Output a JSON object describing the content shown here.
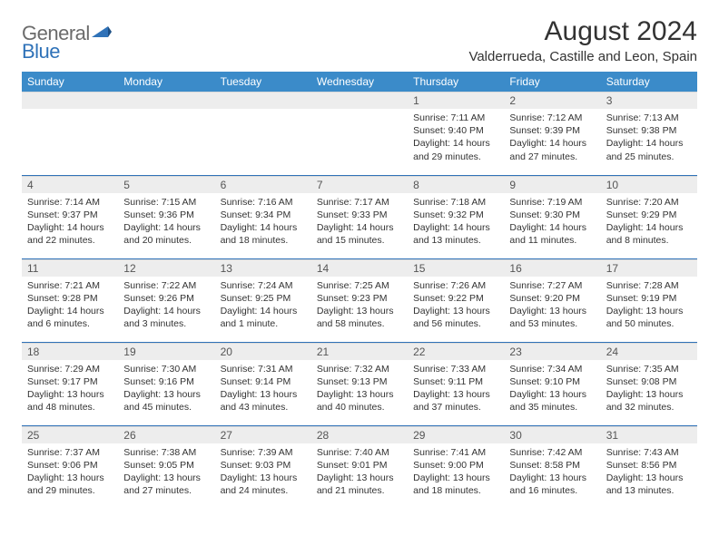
{
  "logo": {
    "general": "General",
    "blue": "Blue"
  },
  "title": "August 2024",
  "location": "Valderrueda, Castille and Leon, Spain",
  "colors": {
    "header_bg": "#3b8bc9",
    "border": "#2f72b8",
    "daynum_bg": "#ededed",
    "text": "#333333"
  },
  "day_names": [
    "Sunday",
    "Monday",
    "Tuesday",
    "Wednesday",
    "Thursday",
    "Friday",
    "Saturday"
  ],
  "weeks": [
    [
      {
        "n": "",
        "sr": "",
        "ss": "",
        "dl": ""
      },
      {
        "n": "",
        "sr": "",
        "ss": "",
        "dl": ""
      },
      {
        "n": "",
        "sr": "",
        "ss": "",
        "dl": ""
      },
      {
        "n": "",
        "sr": "",
        "ss": "",
        "dl": ""
      },
      {
        "n": "1",
        "sr": "Sunrise: 7:11 AM",
        "ss": "Sunset: 9:40 PM",
        "dl": "Daylight: 14 hours and 29 minutes."
      },
      {
        "n": "2",
        "sr": "Sunrise: 7:12 AM",
        "ss": "Sunset: 9:39 PM",
        "dl": "Daylight: 14 hours and 27 minutes."
      },
      {
        "n": "3",
        "sr": "Sunrise: 7:13 AM",
        "ss": "Sunset: 9:38 PM",
        "dl": "Daylight: 14 hours and 25 minutes."
      }
    ],
    [
      {
        "n": "4",
        "sr": "Sunrise: 7:14 AM",
        "ss": "Sunset: 9:37 PM",
        "dl": "Daylight: 14 hours and 22 minutes."
      },
      {
        "n": "5",
        "sr": "Sunrise: 7:15 AM",
        "ss": "Sunset: 9:36 PM",
        "dl": "Daylight: 14 hours and 20 minutes."
      },
      {
        "n": "6",
        "sr": "Sunrise: 7:16 AM",
        "ss": "Sunset: 9:34 PM",
        "dl": "Daylight: 14 hours and 18 minutes."
      },
      {
        "n": "7",
        "sr": "Sunrise: 7:17 AM",
        "ss": "Sunset: 9:33 PM",
        "dl": "Daylight: 14 hours and 15 minutes."
      },
      {
        "n": "8",
        "sr": "Sunrise: 7:18 AM",
        "ss": "Sunset: 9:32 PM",
        "dl": "Daylight: 14 hours and 13 minutes."
      },
      {
        "n": "9",
        "sr": "Sunrise: 7:19 AM",
        "ss": "Sunset: 9:30 PM",
        "dl": "Daylight: 14 hours and 11 minutes."
      },
      {
        "n": "10",
        "sr": "Sunrise: 7:20 AM",
        "ss": "Sunset: 9:29 PM",
        "dl": "Daylight: 14 hours and 8 minutes."
      }
    ],
    [
      {
        "n": "11",
        "sr": "Sunrise: 7:21 AM",
        "ss": "Sunset: 9:28 PM",
        "dl": "Daylight: 14 hours and 6 minutes."
      },
      {
        "n": "12",
        "sr": "Sunrise: 7:22 AM",
        "ss": "Sunset: 9:26 PM",
        "dl": "Daylight: 14 hours and 3 minutes."
      },
      {
        "n": "13",
        "sr": "Sunrise: 7:24 AM",
        "ss": "Sunset: 9:25 PM",
        "dl": "Daylight: 14 hours and 1 minute."
      },
      {
        "n": "14",
        "sr": "Sunrise: 7:25 AM",
        "ss": "Sunset: 9:23 PM",
        "dl": "Daylight: 13 hours and 58 minutes."
      },
      {
        "n": "15",
        "sr": "Sunrise: 7:26 AM",
        "ss": "Sunset: 9:22 PM",
        "dl": "Daylight: 13 hours and 56 minutes."
      },
      {
        "n": "16",
        "sr": "Sunrise: 7:27 AM",
        "ss": "Sunset: 9:20 PM",
        "dl": "Daylight: 13 hours and 53 minutes."
      },
      {
        "n": "17",
        "sr": "Sunrise: 7:28 AM",
        "ss": "Sunset: 9:19 PM",
        "dl": "Daylight: 13 hours and 50 minutes."
      }
    ],
    [
      {
        "n": "18",
        "sr": "Sunrise: 7:29 AM",
        "ss": "Sunset: 9:17 PM",
        "dl": "Daylight: 13 hours and 48 minutes."
      },
      {
        "n": "19",
        "sr": "Sunrise: 7:30 AM",
        "ss": "Sunset: 9:16 PM",
        "dl": "Daylight: 13 hours and 45 minutes."
      },
      {
        "n": "20",
        "sr": "Sunrise: 7:31 AM",
        "ss": "Sunset: 9:14 PM",
        "dl": "Daylight: 13 hours and 43 minutes."
      },
      {
        "n": "21",
        "sr": "Sunrise: 7:32 AM",
        "ss": "Sunset: 9:13 PM",
        "dl": "Daylight: 13 hours and 40 minutes."
      },
      {
        "n": "22",
        "sr": "Sunrise: 7:33 AM",
        "ss": "Sunset: 9:11 PM",
        "dl": "Daylight: 13 hours and 37 minutes."
      },
      {
        "n": "23",
        "sr": "Sunrise: 7:34 AM",
        "ss": "Sunset: 9:10 PM",
        "dl": "Daylight: 13 hours and 35 minutes."
      },
      {
        "n": "24",
        "sr": "Sunrise: 7:35 AM",
        "ss": "Sunset: 9:08 PM",
        "dl": "Daylight: 13 hours and 32 minutes."
      }
    ],
    [
      {
        "n": "25",
        "sr": "Sunrise: 7:37 AM",
        "ss": "Sunset: 9:06 PM",
        "dl": "Daylight: 13 hours and 29 minutes."
      },
      {
        "n": "26",
        "sr": "Sunrise: 7:38 AM",
        "ss": "Sunset: 9:05 PM",
        "dl": "Daylight: 13 hours and 27 minutes."
      },
      {
        "n": "27",
        "sr": "Sunrise: 7:39 AM",
        "ss": "Sunset: 9:03 PM",
        "dl": "Daylight: 13 hours and 24 minutes."
      },
      {
        "n": "28",
        "sr": "Sunrise: 7:40 AM",
        "ss": "Sunset: 9:01 PM",
        "dl": "Daylight: 13 hours and 21 minutes."
      },
      {
        "n": "29",
        "sr": "Sunrise: 7:41 AM",
        "ss": "Sunset: 9:00 PM",
        "dl": "Daylight: 13 hours and 18 minutes."
      },
      {
        "n": "30",
        "sr": "Sunrise: 7:42 AM",
        "ss": "Sunset: 8:58 PM",
        "dl": "Daylight: 13 hours and 16 minutes."
      },
      {
        "n": "31",
        "sr": "Sunrise: 7:43 AM",
        "ss": "Sunset: 8:56 PM",
        "dl": "Daylight: 13 hours and 13 minutes."
      }
    ]
  ]
}
